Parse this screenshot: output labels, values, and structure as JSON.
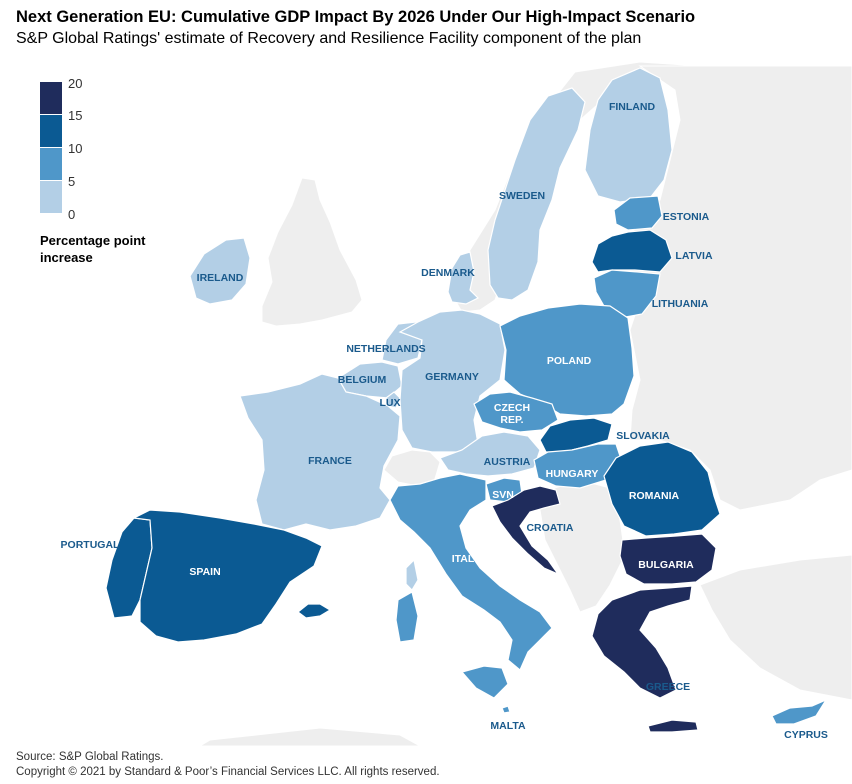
{
  "title": "Next Generation EU: Cumulative GDP Impact By 2026 Under Our High-Impact Scenario",
  "subtitle": "S&P Global Ratings' estimate of Recovery and Resilience Facility component of the plan",
  "legend": {
    "title_line1": "Percentage point",
    "title_line2": "increase",
    "ticks": [
      "20",
      "15",
      "10",
      "5",
      "0"
    ],
    "colors": [
      "#1f2c5c",
      "#0b5a93",
      "#4f97c9",
      "#b3cfe6"
    ]
  },
  "colors": {
    "non_eu": "#eeeeee",
    "water": "#ffffff",
    "border": "#ffffff",
    "label_dark_text": "#ffffff",
    "label_light_text": "#1a5a8c"
  },
  "countries": [
    {
      "label": "FINLAND",
      "class": 0
    },
    {
      "label": "SWEDEN",
      "class": 0
    },
    {
      "label": "ESTONIA",
      "class": 1
    },
    {
      "label": "LATVIA",
      "class": 2
    },
    {
      "label": "LITHUANIA",
      "class": 1
    },
    {
      "label": "DENMARK",
      "class": 0
    },
    {
      "label": "IRELAND",
      "class": 0
    },
    {
      "label": "NETHERLANDS",
      "class": 0
    },
    {
      "label": "BELGIUM",
      "class": 0
    },
    {
      "label": "LUX",
      "class": 0
    },
    {
      "label": "GERMANY",
      "class": 0
    },
    {
      "label": "POLAND",
      "class": 1
    },
    {
      "label": "CZECH",
      "class": 1
    },
    {
      "label": "REP.",
      "class": 1
    },
    {
      "label": "SLOVAKIA",
      "class": 2
    },
    {
      "label": "AUSTRIA",
      "class": 0
    },
    {
      "label": "HUNGARY",
      "class": 1
    },
    {
      "label": "ROMANIA",
      "class": 2
    },
    {
      "label": "FRANCE",
      "class": 0
    },
    {
      "label": "SVN",
      "class": 1
    },
    {
      "label": "CROATIA",
      "class": 3
    },
    {
      "label": "PORTUGAL",
      "class": 2
    },
    {
      "label": "SPAIN",
      "class": 2
    },
    {
      "label": "ITALY",
      "class": 1
    },
    {
      "label": "BULGARIA",
      "class": 3
    },
    {
      "label": "GREECE",
      "class": 3
    },
    {
      "label": "MALTA",
      "class": 1
    },
    {
      "label": "CYPRUS",
      "class": 1
    }
  ],
  "source": "Source: S&P Global Ratings.",
  "copyright": "Copyright © 2021 by Standard & Poor’s Financial Services LLC. All rights reserved."
}
